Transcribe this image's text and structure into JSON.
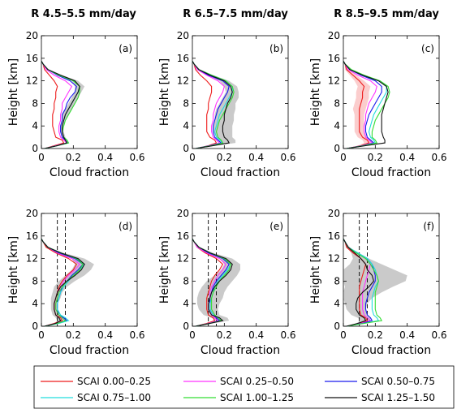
{
  "column_titles": [
    "R 4.5–5.5 mm/day",
    "R 6.5–7.5 mm/day",
    "R 8.5–9.5 mm/day"
  ],
  "legend": [
    {
      "label": "SCAI 0.00–0.25",
      "color": "#ee1c1c"
    },
    {
      "label": "SCAI 0.25–0.50",
      "color": "#ff33ff"
    },
    {
      "label": "SCAI 0.50–0.75",
      "color": "#1a1aee"
    },
    {
      "label": "SCAI 0.75–1.00",
      "color": "#22dddd"
    },
    {
      "label": "SCAI 1.00–1.25",
      "color": "#33dd33"
    },
    {
      "label": "SCAI 1.25–1.50",
      "color": "#111111"
    }
  ],
  "chart_data": {
    "type": "line",
    "xlabel": "Cloud fraction",
    "ylabel": "Height [km]",
    "xlim": [
      0,
      0.6
    ],
    "ylim": [
      0,
      20
    ],
    "xticks": [
      "0",
      "0.2",
      "0.4",
      "0.6"
    ],
    "yticks": [
      "0",
      "4",
      "8",
      "12",
      "16",
      "20"
    ],
    "heights": [
      0,
      0.5,
      1,
      1.5,
      2,
      3,
      4,
      5,
      6,
      7,
      8,
      9,
      10,
      11,
      12,
      13,
      14,
      15,
      15.5
    ],
    "panels": [
      {
        "label": "(a)",
        "series": [
          [
            0.02,
            0.08,
            0.14,
            0.13,
            0.09,
            0.08,
            0.07,
            0.07,
            0.07,
            0.08,
            0.08,
            0.09,
            0.09,
            0.1,
            0.08,
            0.05,
            0.02,
            0.01,
            0
          ],
          [
            0.02,
            0.09,
            0.16,
            0.14,
            0.12,
            0.11,
            0.11,
            0.12,
            0.12,
            0.13,
            0.13,
            0.15,
            0.17,
            0.19,
            0.15,
            0.08,
            0.03,
            0.01,
            0
          ],
          [
            0.02,
            0.1,
            0.16,
            0.15,
            0.13,
            0.12,
            0.12,
            0.13,
            0.13,
            0.15,
            0.16,
            0.18,
            0.21,
            0.22,
            0.18,
            0.1,
            0.04,
            0.01,
            0
          ],
          [
            0.02,
            0.1,
            0.17,
            0.16,
            0.14,
            0.13,
            0.13,
            0.14,
            0.15,
            0.17,
            0.19,
            0.21,
            0.23,
            0.24,
            0.2,
            0.11,
            0.04,
            0.01,
            0
          ],
          [
            0.02,
            0.1,
            0.17,
            0.16,
            0.14,
            0.13,
            0.14,
            0.15,
            0.17,
            0.19,
            0.21,
            0.23,
            0.24,
            0.24,
            0.2,
            0.11,
            0.04,
            0.01,
            0
          ],
          [
            0.02,
            0.1,
            0.16,
            0.15,
            0.14,
            0.13,
            0.13,
            0.14,
            0.15,
            0.17,
            0.19,
            0.21,
            0.23,
            0.24,
            0.21,
            0.12,
            0.04,
            0.01,
            0
          ]
        ],
        "band": {
          "series": 5,
          "spread": [
            0,
            0.01,
            0.01,
            0.01,
            0.01,
            0.01,
            0.01,
            0.01,
            0.02,
            0.02,
            0.02,
            0.02,
            0.02,
            0.03,
            0.02,
            0.01,
            0.01,
            0,
            0
          ]
        },
        "dashed": []
      },
      {
        "label": "(b)",
        "series": [
          [
            0.02,
            0.1,
            0.15,
            0.14,
            0.11,
            0.09,
            0.09,
            0.09,
            0.09,
            0.1,
            0.1,
            0.11,
            0.12,
            0.12,
            0.09,
            0.05,
            0.02,
            0.01,
            0
          ],
          [
            0.02,
            0.11,
            0.17,
            0.15,
            0.13,
            0.12,
            0.12,
            0.13,
            0.13,
            0.14,
            0.15,
            0.17,
            0.19,
            0.2,
            0.16,
            0.09,
            0.03,
            0.01,
            0
          ],
          [
            0.02,
            0.11,
            0.18,
            0.16,
            0.14,
            0.13,
            0.13,
            0.14,
            0.15,
            0.16,
            0.18,
            0.2,
            0.22,
            0.23,
            0.19,
            0.1,
            0.04,
            0.01,
            0
          ],
          [
            0.02,
            0.12,
            0.19,
            0.17,
            0.15,
            0.14,
            0.15,
            0.16,
            0.17,
            0.19,
            0.21,
            0.23,
            0.25,
            0.25,
            0.21,
            0.12,
            0.04,
            0.01,
            0
          ],
          [
            0.02,
            0.12,
            0.19,
            0.18,
            0.16,
            0.15,
            0.16,
            0.17,
            0.19,
            0.21,
            0.23,
            0.25,
            0.26,
            0.25,
            0.21,
            0.12,
            0.04,
            0.01,
            0
          ],
          [
            0.02,
            0.13,
            0.23,
            0.22,
            0.2,
            0.19,
            0.19,
            0.2,
            0.2,
            0.21,
            0.22,
            0.24,
            0.25,
            0.24,
            0.2,
            0.11,
            0.04,
            0.01,
            0
          ]
        ],
        "band": {
          "series": 5,
          "spread": [
            0,
            0.02,
            0.04,
            0.05,
            0.05,
            0.06,
            0.06,
            0.06,
            0.06,
            0.06,
            0.05,
            0.05,
            0.04,
            0.04,
            0.03,
            0.02,
            0.01,
            0,
            0
          ]
        },
        "dashed": []
      },
      {
        "label": "(c)",
        "series": [
          [
            0.02,
            0.11,
            0.16,
            0.15,
            0.12,
            0.1,
            0.1,
            0.1,
            0.1,
            0.1,
            0.11,
            0.12,
            0.12,
            0.13,
            0.1,
            0.06,
            0.02,
            0.01,
            0
          ],
          [
            0.02,
            0.12,
            0.18,
            0.16,
            0.14,
            0.13,
            0.13,
            0.14,
            0.14,
            0.15,
            0.16,
            0.18,
            0.2,
            0.21,
            0.17,
            0.09,
            0.03,
            0.01,
            0
          ],
          [
            0.02,
            0.12,
            0.19,
            0.17,
            0.15,
            0.14,
            0.14,
            0.15,
            0.16,
            0.18,
            0.2,
            0.22,
            0.24,
            0.24,
            0.2,
            0.11,
            0.04,
            0.01,
            0
          ],
          [
            0.02,
            0.13,
            0.2,
            0.19,
            0.17,
            0.16,
            0.17,
            0.18,
            0.19,
            0.21,
            0.23,
            0.25,
            0.27,
            0.27,
            0.22,
            0.12,
            0.04,
            0.01,
            0
          ],
          [
            0.02,
            0.13,
            0.21,
            0.2,
            0.18,
            0.18,
            0.19,
            0.2,
            0.22,
            0.24,
            0.26,
            0.28,
            0.29,
            0.28,
            0.23,
            0.13,
            0.05,
            0.01,
            0
          ],
          [
            0.02,
            0.14,
            0.26,
            0.26,
            0.25,
            0.24,
            0.24,
            0.24,
            0.24,
            0.25,
            0.26,
            0.27,
            0.28,
            0.27,
            0.22,
            0.12,
            0.04,
            0.01,
            0
          ]
        ],
        "band": {
          "series": 0,
          "spread": [
            0,
            0.02,
            0.03,
            0.03,
            0.03,
            0.03,
            0.03,
            0.03,
            0.03,
            0.04,
            0.04,
            0.04,
            0.04,
            0.04,
            0.03,
            0.02,
            0.01,
            0,
            0
          ]
        },
        "dashed": []
      },
      {
        "label": "(d)",
        "series": [
          [
            0.02,
            0.08,
            0.13,
            0.12,
            0.09,
            0.08,
            0.08,
            0.09,
            0.1,
            0.11,
            0.13,
            0.16,
            0.2,
            0.22,
            0.17,
            0.09,
            0.03,
            0.01,
            0
          ],
          [
            0.02,
            0.09,
            0.15,
            0.13,
            0.11,
            0.09,
            0.09,
            0.1,
            0.11,
            0.12,
            0.14,
            0.17,
            0.21,
            0.24,
            0.19,
            0.1,
            0.04,
            0.01,
            0
          ],
          [
            0.02,
            0.1,
            0.16,
            0.14,
            0.11,
            0.1,
            0.1,
            0.11,
            0.12,
            0.13,
            0.16,
            0.19,
            0.23,
            0.26,
            0.21,
            0.11,
            0.04,
            0.01,
            0
          ],
          [
            0.02,
            0.11,
            0.17,
            0.15,
            0.12,
            0.1,
            0.1,
            0.11,
            0.12,
            0.14,
            0.17,
            0.2,
            0.24,
            0.27,
            0.22,
            0.12,
            0.04,
            0.01,
            0
          ],
          [
            0.02,
            0.1,
            0.15,
            0.13,
            0.11,
            0.09,
            0.09,
            0.1,
            0.11,
            0.13,
            0.16,
            0.2,
            0.24,
            0.26,
            0.22,
            0.12,
            0.04,
            0.01,
            0
          ],
          [
            0.02,
            0.09,
            0.12,
            0.11,
            0.09,
            0.08,
            0.08,
            0.09,
            0.1,
            0.12,
            0.16,
            0.21,
            0.25,
            0.27,
            0.23,
            0.12,
            0.04,
            0.01,
            0
          ]
        ],
        "band": {
          "series": 5,
          "spread": [
            0,
            0.01,
            0.02,
            0.02,
            0.02,
            0.02,
            0.02,
            0.03,
            0.03,
            0.04,
            0.05,
            0.06,
            0.06,
            0.06,
            0.04,
            0.02,
            0.01,
            0,
            0
          ]
        },
        "dashed": [
          0.1,
          0.15
        ]
      },
      {
        "label": "(e)",
        "series": [
          [
            0.02,
            0.09,
            0.14,
            0.13,
            0.1,
            0.09,
            0.09,
            0.09,
            0.1,
            0.11,
            0.12,
            0.14,
            0.17,
            0.19,
            0.15,
            0.08,
            0.03,
            0.01,
            0
          ],
          [
            0.02,
            0.1,
            0.16,
            0.14,
            0.12,
            0.1,
            0.1,
            0.11,
            0.11,
            0.12,
            0.14,
            0.16,
            0.19,
            0.21,
            0.17,
            0.09,
            0.03,
            0.01,
            0
          ],
          [
            0.02,
            0.11,
            0.17,
            0.15,
            0.13,
            0.11,
            0.11,
            0.11,
            0.12,
            0.13,
            0.15,
            0.18,
            0.21,
            0.23,
            0.19,
            0.1,
            0.04,
            0.01,
            0
          ],
          [
            0.02,
            0.11,
            0.18,
            0.16,
            0.13,
            0.11,
            0.11,
            0.12,
            0.13,
            0.14,
            0.16,
            0.19,
            0.22,
            0.24,
            0.2,
            0.11,
            0.04,
            0.01,
            0
          ],
          [
            0.02,
            0.11,
            0.18,
            0.16,
            0.14,
            0.12,
            0.12,
            0.12,
            0.13,
            0.15,
            0.17,
            0.2,
            0.23,
            0.24,
            0.2,
            0.11,
            0.04,
            0.01,
            0
          ],
          [
            0.02,
            0.11,
            0.19,
            0.17,
            0.12,
            0.1,
            0.1,
            0.11,
            0.12,
            0.14,
            0.17,
            0.21,
            0.24,
            0.25,
            0.21,
            0.11,
            0.04,
            0.01,
            0
          ]
        ],
        "band": {
          "series": 5,
          "spread": [
            0,
            0.02,
            0.04,
            0.05,
            0.05,
            0.06,
            0.07,
            0.08,
            0.08,
            0.08,
            0.08,
            0.07,
            0.06,
            0.05,
            0.04,
            0.02,
            0.01,
            0,
            0
          ]
        },
        "dashed": [
          0.1,
          0.15
        ]
      },
      {
        "label": "(f)",
        "series": [
          [
            0.02,
            0.1,
            0.15,
            0.14,
            0.11,
            0.1,
            0.1,
            0.1,
            0.1,
            0.1,
            0.11,
            0.12,
            0.13,
            0.14,
            0.11,
            0.06,
            0.02,
            0.01,
            0
          ],
          [
            0.02,
            0.11,
            0.17,
            0.15,
            0.13,
            0.12,
            0.12,
            0.12,
            0.12,
            0.13,
            0.14,
            0.15,
            0.16,
            0.17,
            0.14,
            0.08,
            0.03,
            0.01,
            0
          ],
          [
            0.02,
            0.12,
            0.18,
            0.17,
            0.15,
            0.14,
            0.14,
            0.15,
            0.16,
            0.18,
            0.2,
            0.2,
            0.19,
            0.18,
            0.15,
            0.09,
            0.03,
            0.01,
            0
          ],
          [
            0.02,
            0.13,
            0.22,
            0.21,
            0.19,
            0.18,
            0.18,
            0.18,
            0.19,
            0.2,
            0.22,
            0.21,
            0.2,
            0.18,
            0.15,
            0.09,
            0.03,
            0.01,
            0
          ],
          [
            0.02,
            0.13,
            0.24,
            0.23,
            0.21,
            0.2,
            0.2,
            0.2,
            0.2,
            0.21,
            0.22,
            0.21,
            0.19,
            0.17,
            0.14,
            0.08,
            0.03,
            0.01,
            0
          ],
          [
            0.02,
            0.09,
            0.14,
            0.13,
            0.1,
            0.08,
            0.08,
            0.09,
            0.12,
            0.16,
            0.19,
            0.18,
            0.15,
            0.14,
            0.11,
            0.07,
            0.03,
            0.01,
            0
          ]
        ],
        "band": {
          "series": 5,
          "spread": [
            0,
            0.01,
            0.03,
            0.04,
            0.05,
            0.06,
            0.07,
            0.09,
            0.12,
            0.15,
            0.2,
            0.22,
            0.17,
            0.1,
            0.05,
            0.02,
            0.01,
            0,
            0
          ]
        },
        "dashed": [
          0.1,
          0.15
        ]
      }
    ]
  }
}
